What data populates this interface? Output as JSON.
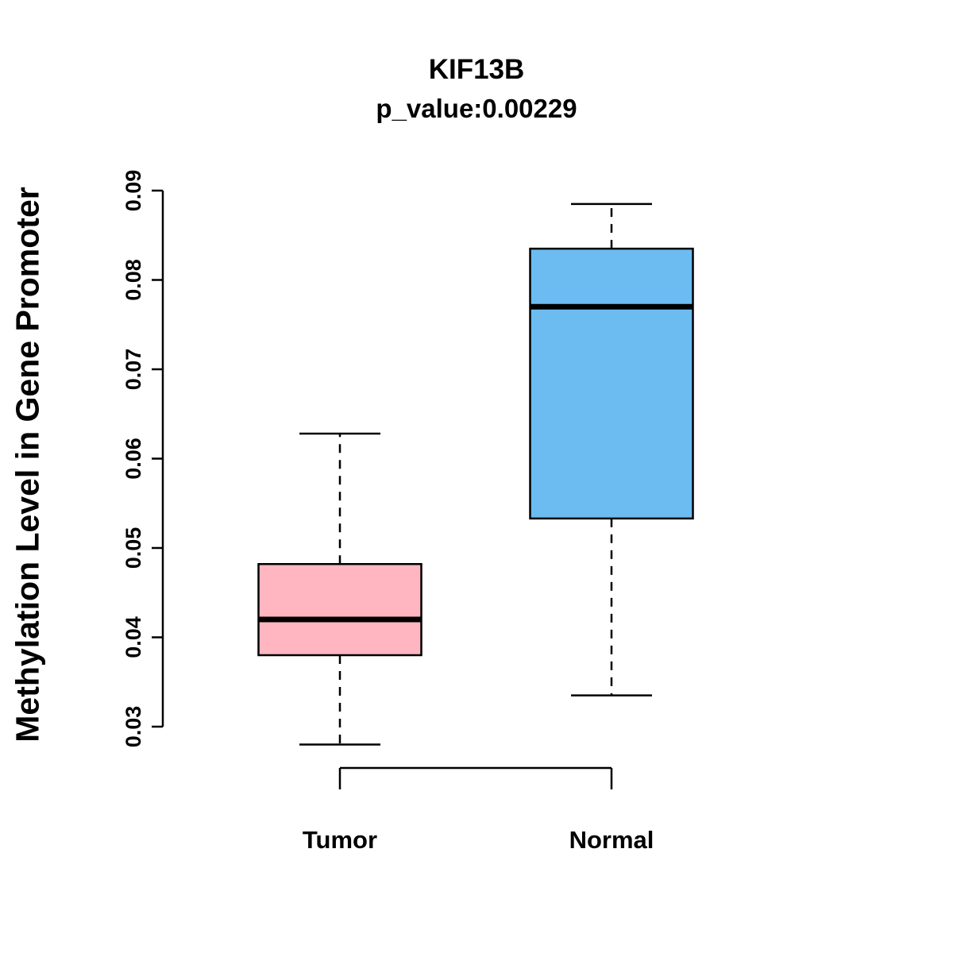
{
  "chart_data": {
    "type": "boxplot",
    "title": "KIF13B",
    "subtitle": "p_value:0.00229",
    "ylabel": "Methylation Level in Gene Promoter",
    "xlabel": "",
    "ylim": [
      0.027,
      0.091
    ],
    "yticks": [
      0.03,
      0.04,
      0.05,
      0.06,
      0.07,
      0.08,
      0.09
    ],
    "grid": false,
    "legend": "none",
    "categories": [
      "Tumor",
      "Normal"
    ],
    "series": [
      {
        "name": "Tumor",
        "color": "#FFB6C1",
        "whisker_low": 0.028,
        "q1": 0.038,
        "median": 0.042,
        "q3": 0.0482,
        "whisker_high": 0.0628
      },
      {
        "name": "Normal",
        "color": "#6CBCF2",
        "whisker_low": 0.0335,
        "q1": 0.0533,
        "median": 0.077,
        "q3": 0.0835,
        "whisker_high": 0.0885
      }
    ]
  }
}
